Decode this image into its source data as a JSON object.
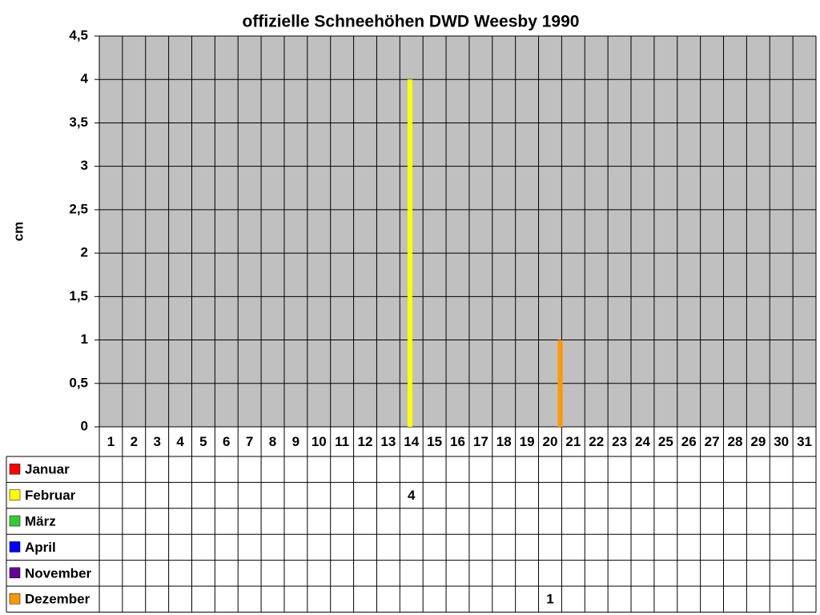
{
  "chart_data": {
    "type": "bar",
    "title": "offizielle Schneehöhen DWD Weesby 1990",
    "y_label": "cm",
    "categories": [
      "1",
      "2",
      "3",
      "4",
      "5",
      "6",
      "7",
      "8",
      "9",
      "10",
      "11",
      "12",
      "13",
      "14",
      "15",
      "16",
      "17",
      "18",
      "19",
      "20",
      "21",
      "22",
      "23",
      "24",
      "25",
      "26",
      "27",
      "28",
      "29",
      "30",
      "31"
    ],
    "ylim": [
      0,
      4.5
    ],
    "yticks": [
      0,
      {
        "value": 0.5,
        "label": "0,5"
      },
      1,
      {
        "value": 1.5,
        "label": "1,5"
      },
      2,
      {
        "value": 2.5,
        "label": "2,5"
      },
      3,
      {
        "value": 3.5,
        "label": "3,5"
      },
      4,
      {
        "value": 4.5,
        "label": "4,5"
      }
    ],
    "grid": true,
    "series": [
      {
        "name": "Januar",
        "color": "#ff0000",
        "values": [
          null,
          null,
          null,
          null,
          null,
          null,
          null,
          null,
          null,
          null,
          null,
          null,
          null,
          null,
          null,
          null,
          null,
          null,
          null,
          null,
          null,
          null,
          null,
          null,
          null,
          null,
          null,
          null,
          null,
          null,
          null
        ]
      },
      {
        "name": "Februar",
        "color": "#ffff00",
        "values": [
          null,
          null,
          null,
          null,
          null,
          null,
          null,
          null,
          null,
          null,
          null,
          null,
          null,
          4,
          null,
          null,
          null,
          null,
          null,
          null,
          null,
          null,
          null,
          null,
          null,
          null,
          null,
          null,
          null,
          null,
          null
        ]
      },
      {
        "name": "März",
        "color": "#33cc33",
        "values": [
          null,
          null,
          null,
          null,
          null,
          null,
          null,
          null,
          null,
          null,
          null,
          null,
          null,
          null,
          null,
          null,
          null,
          null,
          null,
          null,
          null,
          null,
          null,
          null,
          null,
          null,
          null,
          null,
          null,
          null,
          null
        ]
      },
      {
        "name": "April",
        "color": "#0000ff",
        "values": [
          null,
          null,
          null,
          null,
          null,
          null,
          null,
          null,
          null,
          null,
          null,
          null,
          null,
          null,
          null,
          null,
          null,
          null,
          null,
          null,
          null,
          null,
          null,
          null,
          null,
          null,
          null,
          null,
          null,
          null,
          null
        ]
      },
      {
        "name": "November",
        "color": "#660099",
        "values": [
          null,
          null,
          null,
          null,
          null,
          null,
          null,
          null,
          null,
          null,
          null,
          null,
          null,
          null,
          null,
          null,
          null,
          null,
          null,
          null,
          null,
          null,
          null,
          null,
          null,
          null,
          null,
          null,
          null,
          null,
          null
        ]
      },
      {
        "name": "Dezember",
        "color": "#ff9900",
        "values": [
          null,
          null,
          null,
          null,
          null,
          null,
          null,
          null,
          null,
          null,
          null,
          null,
          null,
          null,
          null,
          null,
          null,
          null,
          null,
          1,
          null,
          null,
          null,
          null,
          null,
          null,
          null,
          null,
          null,
          null,
          null
        ]
      }
    ]
  }
}
